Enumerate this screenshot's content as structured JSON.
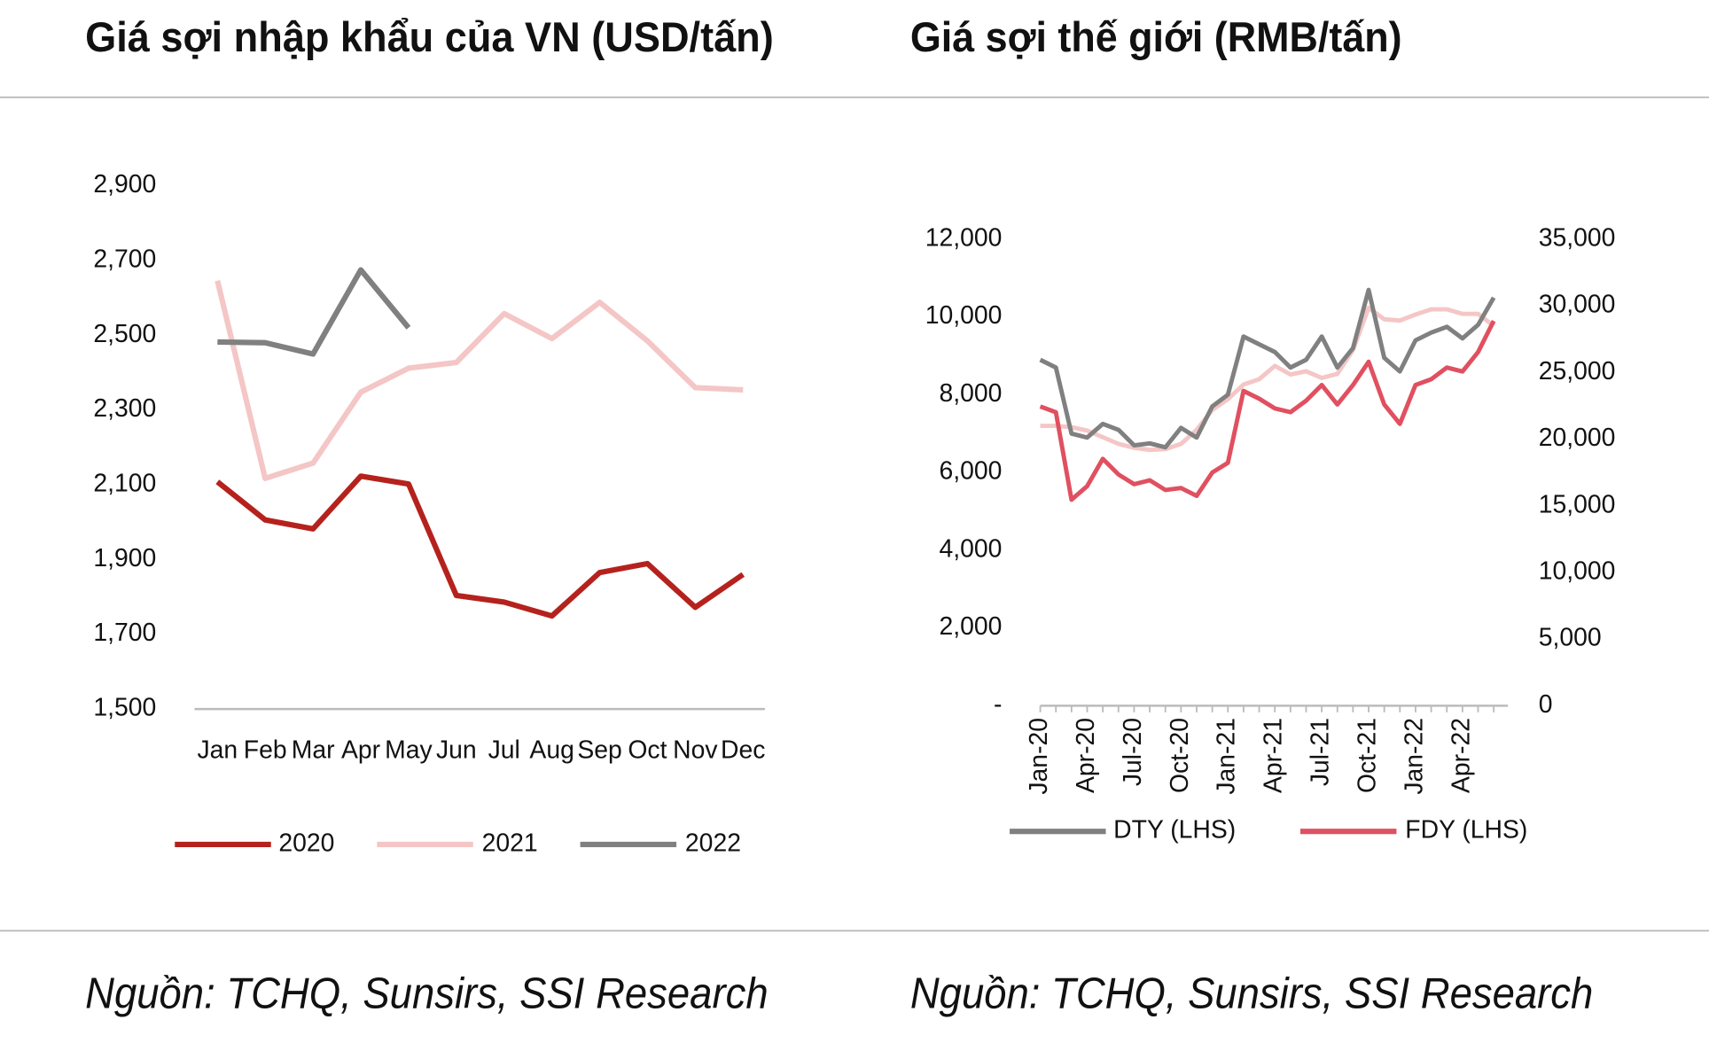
{
  "chart_data": [
    {
      "type": "line",
      "title": "Giá sợi nhập khẩu của VN (USD/tấn)",
      "source": "Nguồn: TCHQ, Sunsirs, SSI Research",
      "categories": [
        "Jan",
        "Feb",
        "Mar",
        "Apr",
        "May",
        "Jun",
        "Jul",
        "Aug",
        "Sep",
        "Oct",
        "Nov",
        "Dec"
      ],
      "ylim": [
        1500,
        2900
      ],
      "yticks": [
        {
          "value": 1500,
          "label": "1,500"
        },
        {
          "value": 1700,
          "label": "1,700"
        },
        {
          "value": 1900,
          "label": "1,900"
        },
        {
          "value": 2100,
          "label": "2,100"
        },
        {
          "value": 2300,
          "label": "2,300"
        },
        {
          "value": 2500,
          "label": "2,500"
        },
        {
          "value": 2700,
          "label": "2,700"
        },
        {
          "value": 2900,
          "label": "2,900"
        }
      ],
      "legend": "bottom",
      "series": [
        {
          "name": "2020",
          "color": "#b5221d",
          "values": [
            2108,
            2006,
            1982,
            2123,
            2102,
            1804,
            1786,
            1749,
            1865,
            1889,
            1772,
            1860
          ]
        },
        {
          "name": "2021",
          "color": "#f4c6c6",
          "values": [
            2646,
            2117,
            2158,
            2348,
            2412,
            2427,
            2558,
            2491,
            2588,
            2485,
            2360,
            2354
          ]
        },
        {
          "name": "2022",
          "color": "#808080",
          "values": [
            2482,
            2480,
            2450,
            2675,
            2520,
            null,
            null,
            null,
            null,
            null,
            null,
            null
          ]
        }
      ]
    },
    {
      "type": "line",
      "title": "Giá sợi thế giới (RMB/tấn)",
      "source": "Nguồn: TCHQ, Sunsirs, SSI Research",
      "categories": [
        "Jan-20",
        null,
        null,
        "Apr-20",
        null,
        null,
        "Jul-20",
        null,
        null,
        "Oct-20",
        null,
        null,
        "Jan-21",
        null,
        null,
        "Apr-21",
        null,
        null,
        "Jul-21",
        null,
        null,
        "Oct-21",
        null,
        null,
        "Jan-22",
        null,
        null,
        "Apr-22",
        null,
        null
      ],
      "ylim": [
        0,
        12000
      ],
      "yticks": [
        {
          "value": 0,
          "label": "-"
        },
        {
          "value": 2000,
          "label": "2,000"
        },
        {
          "value": 4000,
          "label": "4,000"
        },
        {
          "value": 6000,
          "label": "6,000"
        },
        {
          "value": 8000,
          "label": "8,000"
        },
        {
          "value": 10000,
          "label": "10,000"
        },
        {
          "value": 12000,
          "label": "12,000"
        }
      ],
      "y2lim": [
        0,
        35000
      ],
      "y2ticks": [
        0,
        {
          "value": 5000,
          "label": "5,000"
        },
        {
          "value": 10000,
          "label": "10,000"
        },
        {
          "value": 15000,
          "label": "15,000"
        },
        {
          "value": 20000,
          "label": "20,000"
        },
        {
          "value": 25000,
          "label": "25,000"
        },
        {
          "value": 30000,
          "label": "30,000"
        },
        {
          "value": 35000,
          "label": "35,000"
        }
      ],
      "legend": "bottom",
      "series": [
        {
          "color": "#f5c6c6",
          "axis": "y2",
          "values": [
            21000,
            21000,
            20900,
            20650,
            20150,
            19650,
            19350,
            19200,
            19250,
            19650,
            20700,
            22200,
            23000,
            24100,
            24500,
            25500,
            24850,
            25100,
            24600,
            24900,
            26700,
            29850,
            29000,
            28900,
            29350,
            29750,
            29750,
            29400,
            29400,
            28500
          ]
        },
        {
          "name": "DTY (LHS)",
          "color": "#808080",
          "values": [
            8900,
            8700,
            7000,
            6900,
            7250,
            7100,
            6700,
            6750,
            6650,
            7150,
            6900,
            7700,
            8000,
            9500,
            9300,
            9100,
            8700,
            8900,
            9500,
            8700,
            9200,
            10700,
            8950,
            8600,
            9400,
            9600,
            9750,
            9450,
            9800,
            10500
          ]
        },
        {
          "name": "FDY (LHS)",
          "color": "#e05060",
          "values": [
            7700,
            7550,
            5300,
            5650,
            6350,
            5950,
            5700,
            5800,
            5550,
            5600,
            5400,
            6000,
            6250,
            8100,
            7900,
            7650,
            7550,
            7850,
            8250,
            7750,
            8250,
            8850,
            7750,
            7250,
            8250,
            8400,
            8700,
            8600,
            9100,
            9900
          ]
        }
      ]
    }
  ]
}
